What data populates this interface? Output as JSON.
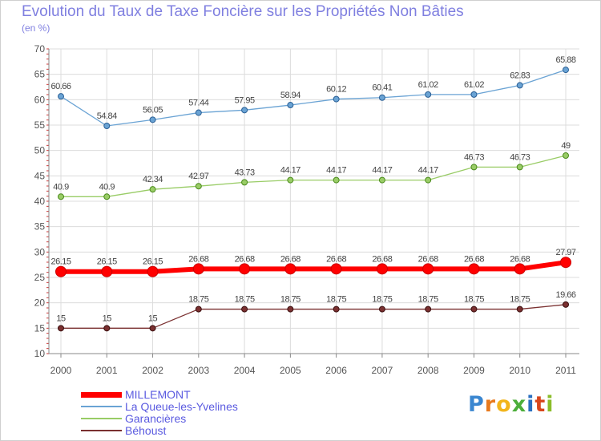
{
  "title": "Evolution du Taux de Taxe Foncière sur les Propriétés Non Bâties",
  "unit_label": "(en %)",
  "brand": {
    "name": "Proxiti",
    "letters": [
      "P",
      "r",
      "o",
      "x",
      "i",
      "t",
      "i"
    ],
    "colors": [
      "#3a86d0",
      "#e87a1e",
      "#f2b51c",
      "#4cae3a",
      "#2a6fc0",
      "#d8461c",
      "#8bbd2a"
    ]
  },
  "chart_data": {
    "type": "line",
    "title": "Evolution du Taux de Taxe Foncière sur les Propriétés Non Bâties",
    "ylabel": "(en %)",
    "xlabel": "",
    "ylim": [
      10,
      70
    ],
    "yticks": [
      10,
      15,
      20,
      25,
      30,
      35,
      40,
      45,
      50,
      55,
      60,
      65,
      70
    ],
    "grid": true,
    "legend_position": "bottom-left",
    "categories": [
      "2000",
      "2001",
      "2002",
      "2003",
      "2004",
      "2005",
      "2006",
      "2007",
      "2008",
      "2009",
      "2010",
      "2011"
    ],
    "series": [
      {
        "name": "MILLEMONT",
        "color": "#ff0000",
        "values": [
          26.15,
          26.15,
          26.15,
          26.68,
          26.68,
          26.68,
          26.68,
          26.68,
          26.68,
          26.68,
          26.68,
          27.97
        ],
        "labels": [
          "26.15",
          "26.15",
          "26.15",
          "26.68",
          "26.68",
          "26.68",
          "26.68",
          "26.68",
          "26.68",
          "26.68",
          "26.68",
          "27.97"
        ]
      },
      {
        "name": "La Queue-les-Yvelines",
        "color": "#6aa3d4",
        "values": [
          60.66,
          54.84,
          56.05,
          57.44,
          57.95,
          58.94,
          60.12,
          60.41,
          61.02,
          61.02,
          62.83,
          65.88
        ],
        "labels": [
          "60.66",
          "54.84",
          "56.05",
          "57.44",
          "57.95",
          "58.94",
          "60.12",
          "60.41",
          "61.02",
          "61.02",
          "62.83",
          "65.88"
        ]
      },
      {
        "name": "Garancières",
        "color": "#99cc66",
        "values": [
          40.9,
          40.9,
          42.34,
          42.97,
          43.73,
          44.17,
          44.17,
          44.17,
          44.17,
          46.73,
          46.73,
          49
        ],
        "labels": [
          "40.9",
          "40.9",
          "42.34",
          "42.97",
          "43.73",
          "44.17",
          "44.17",
          "44.17",
          "44.17",
          "46.73",
          "46.73",
          "49"
        ]
      },
      {
        "name": "Béhoust",
        "color": "#7a3030",
        "values": [
          15,
          15,
          15,
          18.75,
          18.75,
          18.75,
          18.75,
          18.75,
          18.75,
          18.75,
          18.75,
          19.66
        ],
        "labels": [
          "15",
          "15",
          "15",
          "18.75",
          "18.75",
          "18.75",
          "18.75",
          "18.75",
          "18.75",
          "18.75",
          "18.75",
          "19.66"
        ]
      }
    ]
  }
}
